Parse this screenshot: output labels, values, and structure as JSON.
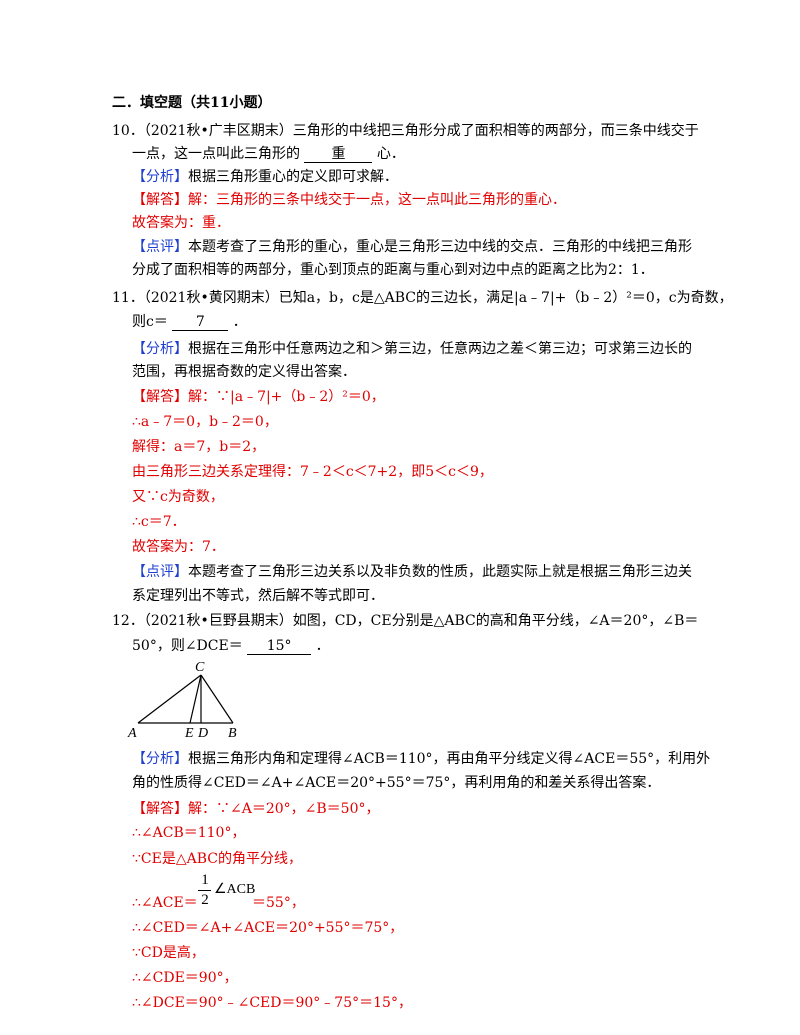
{
  "section_title": "二．填空题（共11小题）",
  "q10": {
    "q_line1": "10．（2021秋•广丰区期末）三角形的中线把三角形分成了面积相等的两部分，而三条中线交于",
    "q_line2_pre": "一点，这一点叫此三角形的",
    "answer": "重",
    "q_line2_post": "心．",
    "analysis_tag": "【分析】",
    "analysis": "根据三角形重心的定义即可求解．",
    "solution_tag": "【解答】",
    "solution": "解：三角形的三条中线交于一点，这一点叫此三角形的重心．",
    "final": "故答案为：重．",
    "comment_tag": "【点评】",
    "comment_line1": "本题考查了三角形的重心，重心是三角形三边中线的交点．三角形的中线把三角形",
    "comment_line2": "分成了面积相等的两部分，重心到顶点的距离与重心到对边中点的距离之比为2：1．"
  },
  "q11": {
    "q_line1": "11．（2021秋•黄冈期末）已知a，b，c是△ABC的三边长，满足|a﹣7|+（b﹣2）²＝0，c为奇数，",
    "q_line2_pre": "则c＝",
    "answer": "7",
    "q_line2_post": "．",
    "analysis_tag": "【分析】",
    "analysis_line1": "根据在三角形中任意两边之和＞第三边，任意两边之差＜第三边；可求第三边长的",
    "analysis_line2": "范围，再根据奇数的定义得出答案．",
    "solution_tag": "【解答】",
    "sol1": "解：∵|a﹣7|+（b﹣2）²＝0，",
    "sol2": "∴a﹣7＝0，b﹣2＝0，",
    "sol3": "解得：a＝7，b＝2，",
    "sol4": "由三角形三边关系定理得：7﹣2＜c＜7+2，即5＜c＜9，",
    "sol5": "又∵c为奇数，",
    "sol6": "∴c＝7．",
    "final": "故答案为：7．",
    "comment_tag": "【点评】",
    "comment_line1": "本题考查了三角形三边关系以及非负数的性质，此题实际上就是根据三角形三边关",
    "comment_line2": "系定理列出不等式，然后解不等式即可．"
  },
  "q12": {
    "q_line1": "12．（2021秋•巨野县期末）如图，CD，CE分别是△ABC的高和角平分线，∠A＝20°，∠B＝",
    "q_line2_pre": "50°，则∠DCE＝",
    "answer": "15°",
    "q_line2_post": "．",
    "figure_labels": {
      "A": "A",
      "B": "B",
      "C": "C",
      "D": "D",
      "E": "E"
    },
    "analysis_tag": "【分析】",
    "analysis_line1": "根据三角形内角和定理得∠ACB＝110°，再由角平分线定义得∠ACE＝55°，利用外",
    "analysis_line2": "角的性质得∠CED＝∠A+∠ACE＝20°+55°＝75°，再利用角的和差关系得出答案．",
    "solution_tag": "【解答】",
    "sol1": "解：∵∠A＝20°，∠B＝50°，",
    "sol2": "∴∠ACB＝110°，",
    "sol3": "∵CE是△ABC的角平分线，",
    "sol4_pre": "∴∠ACE＝",
    "frac_num": "1",
    "frac_den": "2",
    "frac_tail": "∠ACB",
    "sol4_post": "＝55°，",
    "sol5": "∴∠CED＝∠A+∠ACE＝20°+55°＝75°，",
    "sol6": "∵CD是高，",
    "sol7": "∴∠CDE＝90°，",
    "sol8": "∴∠DCE＝90°﹣∠CED＝90°﹣75°＝15°，"
  }
}
